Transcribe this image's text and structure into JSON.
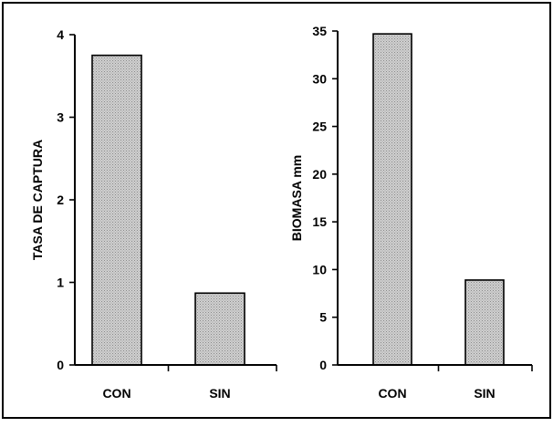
{
  "chart_data": [
    {
      "type": "bar",
      "categories": [
        "CON",
        "SIN"
      ],
      "values": [
        3.75,
        0.87
      ],
      "title": "",
      "xlabel": "",
      "ylabel": "TASA DE CAPTURA",
      "ylim": [
        0,
        4
      ],
      "yticks": [
        0,
        1,
        2,
        3,
        4
      ],
      "grid": false,
      "bar_fill": "#c8c8c8"
    },
    {
      "type": "bar",
      "categories": [
        "CON",
        "SIN"
      ],
      "values": [
        34.7,
        8.9
      ],
      "title": "",
      "xlabel": "",
      "ylabel": "BIOMASA mm",
      "ylim": [
        0,
        35
      ],
      "yticks": [
        0,
        5,
        10,
        15,
        20,
        25,
        30,
        35
      ],
      "grid": false,
      "bar_fill": "#c8c8c8"
    }
  ]
}
